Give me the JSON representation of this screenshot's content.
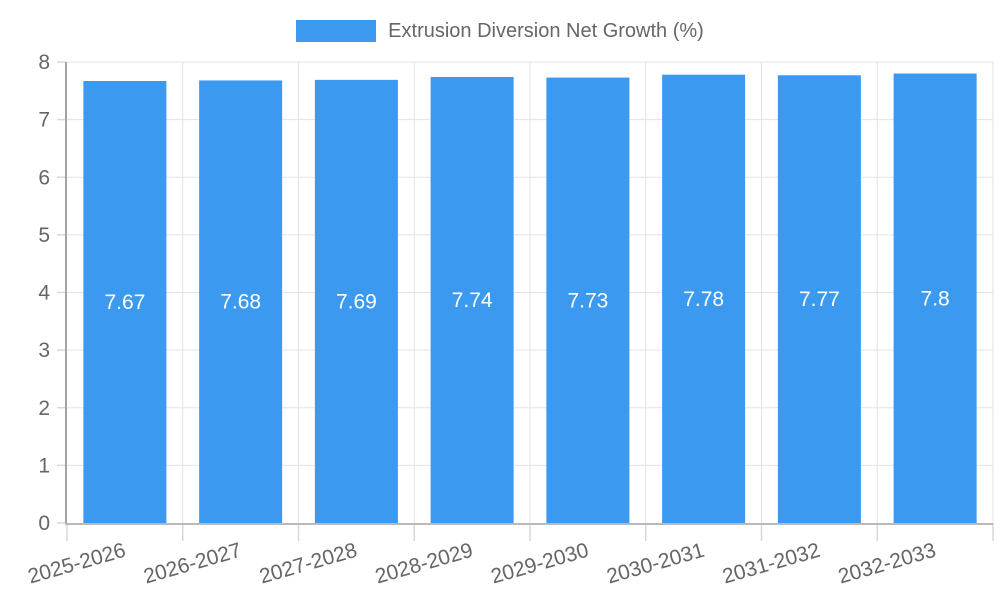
{
  "chart_data": {
    "type": "bar",
    "series_name": "Extrusion Diversion Net Growth (%)",
    "categories": [
      "2025-2026",
      "2026-2027",
      "2027-2028",
      "2028-2029",
      "2029-2030",
      "2030-2031",
      "2031-2032",
      "2032-2033"
    ],
    "values": [
      7.67,
      7.68,
      7.69,
      7.74,
      7.73,
      7.78,
      7.77,
      7.8
    ],
    "title": "",
    "xlabel": "",
    "ylabel": "",
    "ylim": [
      0,
      8
    ],
    "y_ticks": [
      0,
      1,
      2,
      3,
      4,
      5,
      6,
      7,
      8
    ],
    "grid": true,
    "legend_position": "top",
    "data_labels_position": "inside-center",
    "x_label_rotation_deg": -16,
    "colors": {
      "bar": "#3b99f0",
      "data_label": "#ffffff",
      "axis_text": "#666666",
      "gridline": "#e3e3e3",
      "tick": "#d8d8d8",
      "y_axis_line": "#a3a3a3",
      "x_axis_line": "#b9b9b9",
      "background": "#ffffff"
    }
  }
}
